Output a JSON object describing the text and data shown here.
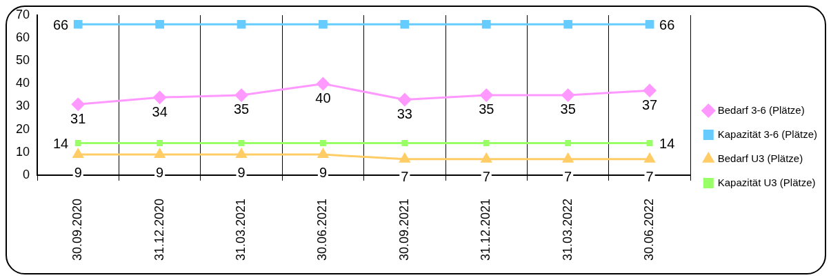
{
  "chart_data": {
    "type": "line",
    "categories": [
      "30.09.2020",
      "31.12.2020",
      "31.03.2021",
      "30.06.2021",
      "30.09.2021",
      "31.12.2021",
      "31.03.2022",
      "30.06.2022"
    ],
    "ylim": [
      0,
      70
    ],
    "yticks": [
      0,
      10,
      20,
      30,
      40,
      50,
      60,
      70
    ],
    "grid": "x",
    "legend": "right",
    "line_style": "solid",
    "series": [
      {
        "name": "Bedarf 3-6 (Plätze)",
        "color": "#ff99ff",
        "marker": "diamond",
        "values": [
          31,
          34,
          35,
          40,
          33,
          35,
          35,
          37
        ],
        "value_labels": [
          "31",
          "34",
          "35",
          "40",
          "33",
          "35",
          "35",
          "37"
        ]
      },
      {
        "name": "Kapazität 3-6 (Plätze)",
        "color": "#66ccff",
        "marker": "square",
        "values": [
          66,
          66,
          66,
          66,
          66,
          66,
          66,
          66
        ],
        "value_labels": [
          "66",
          null,
          null,
          null,
          null,
          null,
          null,
          "66"
        ]
      },
      {
        "name": "Bedarf U3 (Plätze)",
        "color": "#ffcc66",
        "marker": "triangle",
        "values": [
          9,
          9,
          9,
          9,
          7,
          7,
          7,
          7
        ],
        "value_labels": [
          "9",
          "9",
          "9",
          "9",
          "7",
          "7",
          "7",
          "7"
        ]
      },
      {
        "name": "Kapazität U3 (Plätze)",
        "color": "#99ff66",
        "marker": "square",
        "values": [
          14,
          14,
          14,
          14,
          14,
          14,
          14,
          14
        ],
        "value_labels": [
          "14",
          null,
          null,
          null,
          null,
          null,
          null,
          "14"
        ]
      }
    ]
  }
}
